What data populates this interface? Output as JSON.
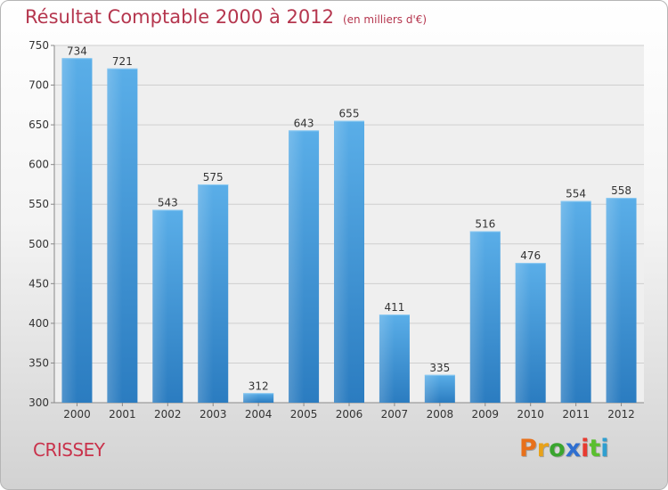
{
  "chart_data": {
    "type": "bar",
    "title": "Résultat Comptable 2000 à 2012",
    "subtitle": "(en milliers d'€)",
    "categories": [
      "2000",
      "2001",
      "2002",
      "2003",
      "2004",
      "2005",
      "2006",
      "2007",
      "2008",
      "2009",
      "2010",
      "2011",
      "2012"
    ],
    "values": [
      734,
      721,
      543,
      575,
      312,
      643,
      655,
      411,
      335,
      516,
      476,
      554,
      558
    ],
    "ylim": [
      300,
      750
    ],
    "yticks": [
      300,
      350,
      400,
      450,
      500,
      550,
      600,
      650,
      700,
      750
    ],
    "grid": true,
    "bar_color": "#3d9ee0"
  },
  "location": "CRISSEY",
  "logo": {
    "letters": [
      "P",
      "r",
      "o",
      "x",
      "i",
      "t",
      "i"
    ],
    "colors": [
      "#e8701a",
      "#e8a21a",
      "#3aa52f",
      "#2f6fd0",
      "#e83a2f",
      "#5abf2f",
      "#2f9fd0"
    ]
  }
}
